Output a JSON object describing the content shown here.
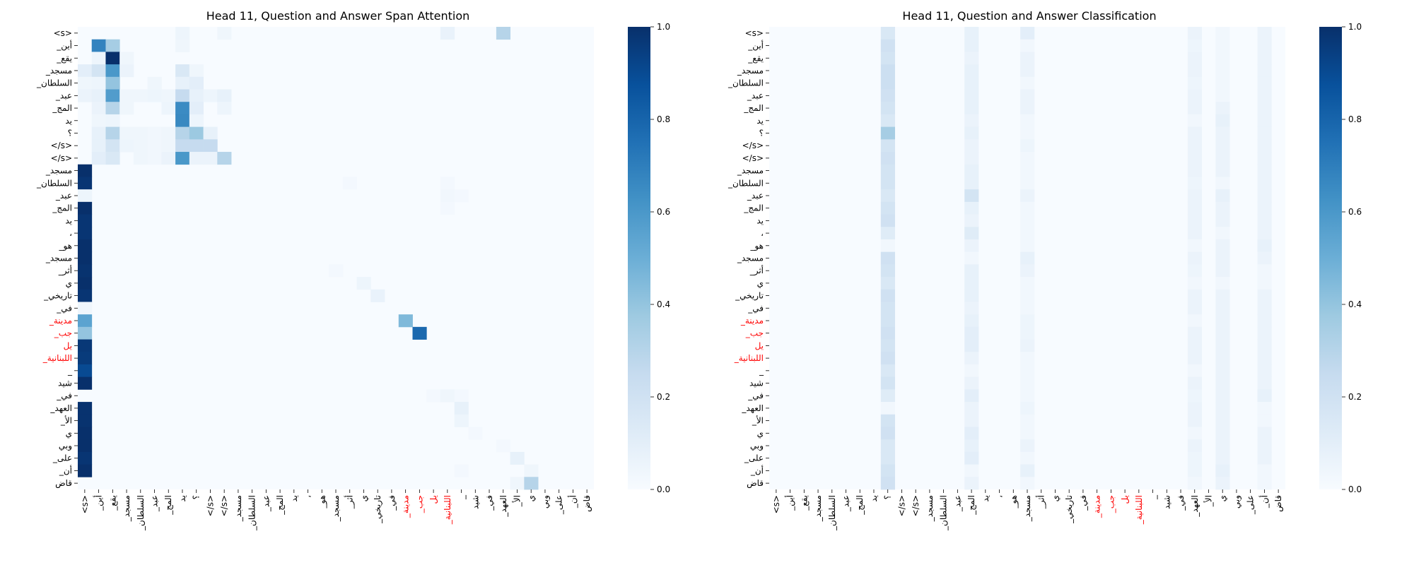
{
  "colors": {
    "cmap_low": "#f7fbff",
    "cmap_high": "#08306b",
    "highlight_label": "#ff0000"
  },
  "chart_data": [
    {
      "type": "heatmap",
      "title": "Head 11, Question and Answer Span Attention",
      "labels": [
        "<s>",
        "_أين",
        "_يقع",
        "_مسجد",
        "_السلطان",
        "_عبد",
        "_المج",
        "يد",
        "؟",
        "</s>",
        "</s>",
        "_مسجد",
        "_السلطان",
        "_عبد",
        "_المج",
        "يد",
        "،",
        "_هو",
        "_مسجد",
        "_أثر",
        "ي",
        "_تاريخي",
        "_في",
        "_مدينة",
        "_جب",
        "يل",
        "_اللبنانية",
        "_",
        "شيد",
        "_في",
        "_العهد",
        "_الأ",
        "ي",
        "وبي",
        "_على",
        "_أن",
        "قاض"
      ],
      "highlighted": [
        23,
        24,
        25,
        26
      ],
      "colorbar": {
        "range": [
          0,
          1
        ],
        "ticks": [
          "0.0",
          "0.2",
          "0.4",
          "0.6",
          "0.8",
          "1.0"
        ]
      },
      "cells": [
        [
          0,
          7,
          0.05
        ],
        [
          0,
          10,
          0.04
        ],
        [
          0,
          26,
          0.07
        ],
        [
          0,
          30,
          0.3
        ],
        [
          1,
          1,
          0.68
        ],
        [
          1,
          2,
          0.35
        ],
        [
          1,
          7,
          0.04
        ],
        [
          2,
          1,
          0.05
        ],
        [
          2,
          2,
          1.0
        ],
        [
          2,
          3,
          0.04
        ],
        [
          3,
          0,
          0.1
        ],
        [
          3,
          1,
          0.18
        ],
        [
          3,
          2,
          0.6
        ],
        [
          3,
          3,
          0.06
        ],
        [
          3,
          7,
          0.15
        ],
        [
          3,
          8,
          0.04
        ],
        [
          4,
          0,
          0.04
        ],
        [
          4,
          1,
          0.05
        ],
        [
          4,
          2,
          0.4
        ],
        [
          4,
          5,
          0.04
        ],
        [
          4,
          7,
          0.08
        ],
        [
          4,
          8,
          0.1
        ],
        [
          5,
          0,
          0.06
        ],
        [
          5,
          1,
          0.08
        ],
        [
          5,
          2,
          0.58
        ],
        [
          5,
          3,
          0.04
        ],
        [
          5,
          4,
          0.04
        ],
        [
          5,
          5,
          0.05
        ],
        [
          5,
          6,
          0.04
        ],
        [
          5,
          7,
          0.25
        ],
        [
          5,
          8,
          0.08
        ],
        [
          5,
          9,
          0.05
        ],
        [
          5,
          10,
          0.08
        ],
        [
          6,
          1,
          0.06
        ],
        [
          6,
          2,
          0.3
        ],
        [
          6,
          3,
          0.04
        ],
        [
          6,
          6,
          0.05
        ],
        [
          6,
          7,
          0.65
        ],
        [
          6,
          8,
          0.1
        ],
        [
          6,
          10,
          0.05
        ],
        [
          7,
          1,
          0.04
        ],
        [
          7,
          2,
          0.05
        ],
        [
          7,
          7,
          0.66
        ],
        [
          7,
          8,
          0.05
        ],
        [
          8,
          1,
          0.08
        ],
        [
          8,
          2,
          0.3
        ],
        [
          8,
          3,
          0.04
        ],
        [
          8,
          4,
          0.04
        ],
        [
          8,
          5,
          0.03
        ],
        [
          8,
          6,
          0.04
        ],
        [
          8,
          7,
          0.3
        ],
        [
          8,
          8,
          0.38
        ],
        [
          8,
          9,
          0.08
        ],
        [
          9,
          1,
          0.08
        ],
        [
          9,
          2,
          0.18
        ],
        [
          9,
          3,
          0.05
        ],
        [
          9,
          4,
          0.04
        ],
        [
          9,
          5,
          0.03
        ],
        [
          9,
          6,
          0.04
        ],
        [
          9,
          7,
          0.25
        ],
        [
          9,
          8,
          0.25
        ],
        [
          9,
          9,
          0.25
        ],
        [
          10,
          1,
          0.1
        ],
        [
          10,
          2,
          0.15
        ],
        [
          10,
          4,
          0.04
        ],
        [
          10,
          5,
          0.03
        ],
        [
          10,
          6,
          0.06
        ],
        [
          10,
          7,
          0.6
        ],
        [
          10,
          8,
          0.06
        ],
        [
          10,
          9,
          0.06
        ],
        [
          10,
          10,
          0.3
        ],
        [
          11,
          0,
          1.0
        ],
        [
          12,
          0,
          0.98
        ],
        [
          12,
          19,
          0.02
        ],
        [
          12,
          26,
          0.02
        ],
        [
          13,
          0,
          0.05
        ],
        [
          13,
          26,
          0.03
        ],
        [
          13,
          27,
          0.02
        ],
        [
          14,
          0,
          1.0
        ],
        [
          14,
          26,
          0.02
        ],
        [
          15,
          0,
          0.98
        ],
        [
          16,
          0,
          0.98
        ],
        [
          17,
          0,
          1.0
        ],
        [
          18,
          0,
          1.0
        ],
        [
          19,
          0,
          0.99
        ],
        [
          19,
          18,
          0.02
        ],
        [
          20,
          0,
          1.0
        ],
        [
          20,
          20,
          0.05
        ],
        [
          21,
          0,
          0.98
        ],
        [
          21,
          21,
          0.07
        ],
        [
          22,
          0,
          0.04
        ],
        [
          23,
          0,
          0.55
        ],
        [
          23,
          23,
          0.45
        ],
        [
          24,
          0,
          0.4
        ],
        [
          24,
          24,
          0.78
        ],
        [
          25,
          0,
          0.97
        ],
        [
          26,
          0,
          0.96
        ],
        [
          27,
          0,
          0.9
        ],
        [
          28,
          0,
          1.0
        ],
        [
          29,
          25,
          0.02
        ],
        [
          29,
          26,
          0.04
        ],
        [
          29,
          27,
          0.02
        ],
        [
          30,
          0,
          0.99
        ],
        [
          30,
          27,
          0.08
        ],
        [
          31,
          0,
          0.99
        ],
        [
          31,
          27,
          0.05
        ],
        [
          32,
          0,
          1.0
        ],
        [
          32,
          28,
          0.02
        ],
        [
          33,
          0,
          1.0
        ],
        [
          33,
          30,
          0.02
        ],
        [
          34,
          0,
          0.98
        ],
        [
          34,
          31,
          0.08
        ],
        [
          35,
          0,
          1.0
        ],
        [
          35,
          27,
          0.02
        ],
        [
          35,
          32,
          0.04
        ],
        [
          36,
          31,
          0.04
        ],
        [
          36,
          32,
          0.3
        ]
      ]
    },
    {
      "type": "heatmap",
      "title": "Head 11, Question and Answer Classification",
      "labels": [
        "<s>",
        "_أين",
        "_يقع",
        "_مسجد",
        "_السلطان",
        "_عبد",
        "_المج",
        "يد",
        "؟",
        "</s>",
        "</s>",
        "_مسجد",
        "_السلطان",
        "_عبد",
        "_المج",
        "يد",
        "،",
        "_هو",
        "_مسجد",
        "_أثر",
        "ي",
        "_تاريخي",
        "_في",
        "_مدينة",
        "_جب",
        "يل",
        "_اللبنانية",
        "_",
        "شيد",
        "_في",
        "_العهد",
        "_الأ",
        "ي",
        "وبي",
        "_على",
        "_أن",
        "قاض"
      ],
      "highlighted": [
        23,
        24,
        25,
        26
      ],
      "colorbar": {
        "range": [
          0,
          1
        ],
        "ticks": [
          "0.0",
          "0.2",
          "0.4",
          "0.6",
          "0.8",
          "1.0"
        ]
      },
      "columns": [
        {
          "col": 8,
          "values": [
            0.15,
            0.2,
            0.18,
            0.22,
            0.22,
            0.2,
            0.18,
            0.15,
            0.35,
            0.18,
            0.2,
            0.18,
            0.18,
            0.15,
            0.18,
            0.2,
            0.12,
            0.03,
            0.2,
            0.18,
            0.15,
            0.2,
            0.18,
            0.18,
            0.2,
            0.18,
            0.2,
            0.15,
            0.18,
            0.12,
            0.03,
            0.18,
            0.2,
            0.15,
            0.15,
            0.18,
            0.2
          ]
        },
        {
          "col": 14,
          "values": [
            0.08,
            0.08,
            0.06,
            0.08,
            0.08,
            0.08,
            0.08,
            0.06,
            0.08,
            0.06,
            0.06,
            0.08,
            0.08,
            0.18,
            0.08,
            0.06,
            0.12,
            0.06,
            0.03,
            0.08,
            0.08,
            0.08,
            0.06,
            0.08,
            0.1,
            0.1,
            0.06,
            0.03,
            0.06,
            0.1,
            0.06,
            0.06,
            0.1,
            0.08,
            0.1,
            0.03,
            0.06
          ]
        },
        {
          "col": 18,
          "values": [
            0.1,
            0.03,
            0.06,
            0.06,
            0.03,
            0.06,
            0.06,
            0.03,
            0.03,
            0.05,
            0.03,
            0.03,
            0.03,
            0.06,
            0.03,
            0.03,
            0.03,
            0.03,
            0.08,
            0.06,
            0.03,
            0.03,
            0.03,
            0.05,
            0.05,
            0.06,
            0.03,
            0.03,
            0.03,
            0.03,
            0.05,
            0.03,
            0.03,
            0.06,
            0.03,
            0.08,
            0.03
          ]
        },
        {
          "col": 30,
          "values": [
            0.06,
            0.05,
            0.06,
            0.06,
            0.05,
            0.06,
            0.06,
            0.03,
            0.06,
            0.06,
            0.06,
            0.06,
            0.05,
            0.06,
            0.06,
            0.06,
            0.06,
            0.03,
            0.06,
            0.05,
            0.03,
            0.06,
            0.06,
            0.03,
            0.06,
            0.06,
            0.06,
            0.03,
            0.06,
            0.05,
            0.06,
            0.06,
            0.03,
            0.06,
            0.05,
            0.05,
            0.03
          ]
        },
        {
          "col": 32,
          "values": [
            0.03,
            0.03,
            0.03,
            0.03,
            0.03,
            0.03,
            0.06,
            0.08,
            0.06,
            0.06,
            0.06,
            0.06,
            0.03,
            0.08,
            0.06,
            0.06,
            0.03,
            0.06,
            0.06,
            0.06,
            0.03,
            0.06,
            0.06,
            0.06,
            0.06,
            0.06,
            0.06,
            0.06,
            0.06,
            0.06,
            0.06,
            0.06,
            0.06,
            0.06,
            0.06,
            0.08,
            0.06
          ]
        },
        {
          "col": 35,
          "values": [
            0.06,
            0.06,
            0.06,
            0.06,
            0.06,
            0.06,
            0.06,
            0.06,
            0.06,
            0.06,
            0.06,
            0.06,
            0.06,
            0.06,
            0.06,
            0.06,
            0.06,
            0.08,
            0.06,
            0.03,
            0.03,
            0.06,
            0.06,
            0.06,
            0.06,
            0.06,
            0.06,
            0.06,
            0.06,
            0.08,
            0.03,
            0.03,
            0.06,
            0.06,
            0.06,
            0.03,
            0.03
          ]
        }
      ]
    }
  ]
}
